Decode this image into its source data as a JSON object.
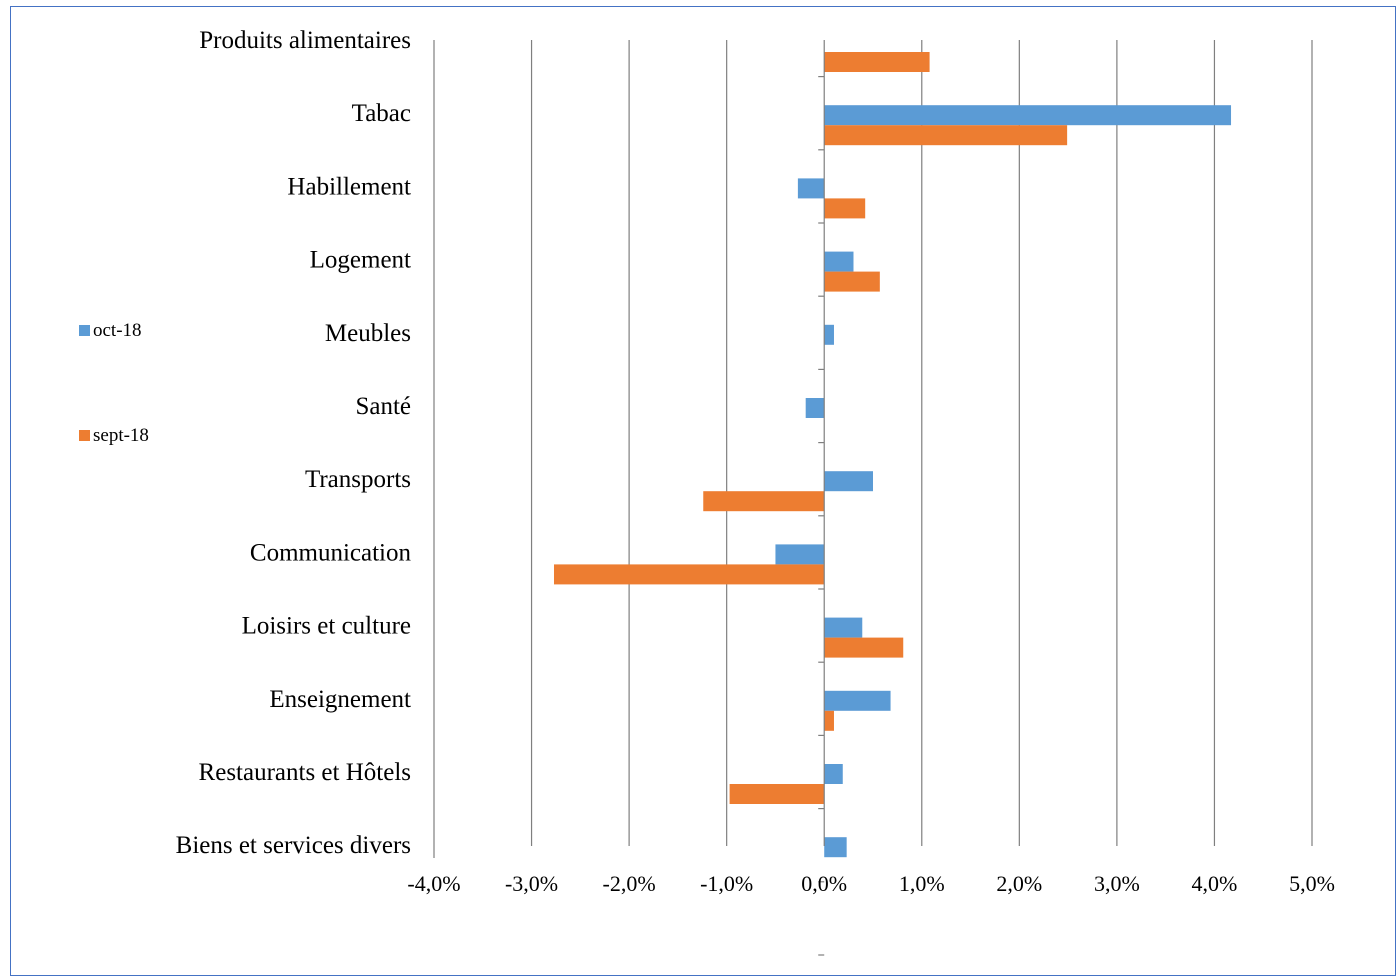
{
  "chart_data": {
    "type": "bar",
    "orientation": "horizontal",
    "categories": [
      "Produits alimentaires",
      "Tabac",
      "Habillement",
      "Logement",
      "Meubles",
      "Santé",
      "Transports",
      "Communication",
      "Loisirs et culture",
      "Enseignement",
      "Restaurants et Hôtels",
      "Biens et services divers"
    ],
    "series": [
      {
        "name": "oct-18",
        "color": "#5b9bd5",
        "values": [
          0.0,
          4.17,
          -0.27,
          0.3,
          0.1,
          -0.19,
          0.5,
          -0.5,
          0.39,
          0.68,
          0.19,
          0.23
        ]
      },
      {
        "name": "sept-18",
        "color": "#ed7d31",
        "values": [
          1.08,
          2.49,
          0.42,
          0.57,
          0.0,
          0.0,
          -1.24,
          -2.77,
          0.81,
          0.1,
          -0.97,
          0.0
        ]
      }
    ],
    "xlim": [
      -4.0,
      5.0
    ],
    "xticks": [
      -4,
      -3,
      -2,
      -1,
      0,
      1,
      2,
      3,
      4,
      5
    ],
    "xtick_labels": [
      "-4,0%",
      "-3,0%",
      "-2,0%",
      "-1,0%",
      "0,0%",
      "1,0%",
      "2,0%",
      "3,0%",
      "4,0%",
      "5,0%"
    ],
    "grid": "vertical",
    "legend_position": "left",
    "title": "",
    "xlabel": "",
    "ylabel": ""
  }
}
